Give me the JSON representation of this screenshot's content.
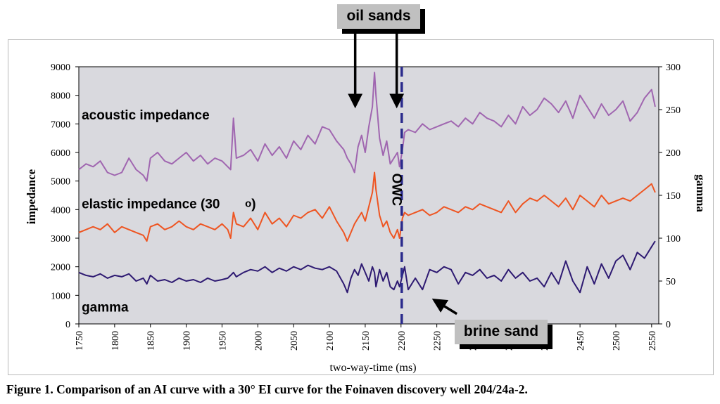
{
  "chart_data": {
    "type": "line",
    "title": "",
    "xlabel": "two-way-time (ms)",
    "ylabel": "impedance",
    "y2label": "gamma",
    "xlim": [
      1750,
      2560
    ],
    "ylim": [
      0,
      9000
    ],
    "y2lim": [
      0,
      300
    ],
    "x_ticks": [
      1750,
      1800,
      1850,
      1900,
      1950,
      2000,
      2050,
      2100,
      2150,
      2200,
      2250,
      2300,
      2350,
      2400,
      2450,
      2500,
      2550
    ],
    "y_ticks": [
      0,
      1000,
      2000,
      3000,
      4000,
      5000,
      6000,
      7000,
      8000,
      9000
    ],
    "y2_ticks": [
      0,
      50,
      100,
      150,
      200,
      250,
      300
    ],
    "grid": false,
    "background": "#d9d9de",
    "series": [
      {
        "name": "acoustic impedance",
        "axis": "left",
        "color": "#a066b0",
        "x": [
          1750,
          1760,
          1770,
          1780,
          1790,
          1800,
          1810,
          1820,
          1830,
          1840,
          1845,
          1850,
          1860,
          1870,
          1880,
          1890,
          1900,
          1910,
          1920,
          1930,
          1940,
          1950,
          1958,
          1962,
          1966,
          1970,
          1980,
          1990,
          2000,
          2010,
          2020,
          2030,
          2040,
          2050,
          2060,
          2070,
          2080,
          2090,
          2100,
          2110,
          2120,
          2125,
          2130,
          2135,
          2140,
          2145,
          2150,
          2155,
          2160,
          2163,
          2165,
          2170,
          2175,
          2180,
          2185,
          2190,
          2195,
          2198,
          2202,
          2205,
          2210,
          2220,
          2230,
          2240,
          2250,
          2260,
          2270,
          2280,
          2290,
          2300,
          2310,
          2320,
          2330,
          2340,
          2350,
          2360,
          2370,
          2380,
          2390,
          2400,
          2410,
          2420,
          2430,
          2440,
          2450,
          2460,
          2470,
          2480,
          2490,
          2500,
          2510,
          2520,
          2530,
          2540,
          2550,
          2555
        ],
        "y": [
          5400,
          5600,
          5500,
          5700,
          5300,
          5200,
          5300,
          5800,
          5400,
          5200,
          5000,
          5800,
          6000,
          5700,
          5600,
          5800,
          6000,
          5700,
          5900,
          5600,
          5800,
          5700,
          5500,
          5400,
          7200,
          5800,
          5900,
          6100,
          5700,
          6300,
          5900,
          6200,
          5800,
          6400,
          6100,
          6600,
          6300,
          6900,
          6800,
          6400,
          6100,
          5800,
          5600,
          5300,
          6200,
          6600,
          6000,
          6900,
          7600,
          8800,
          8000,
          6500,
          5900,
          6400,
          5600,
          5800,
          6000,
          5500,
          6100,
          6700,
          6800,
          6700,
          7000,
          6800,
          6900,
          7000,
          7100,
          6900,
          7200,
          7000,
          7400,
          7200,
          7100,
          6900,
          7300,
          7000,
          7600,
          7300,
          7500,
          7900,
          7700,
          7400,
          7800,
          7200,
          8000,
          7600,
          7200,
          7700,
          7300,
          7500,
          7800,
          7100,
          7400,
          7900,
          8200,
          7600
        ]
      },
      {
        "name": "elastic impedance (30o)",
        "axis": "left",
        "color": "#ee5522",
        "x": [
          1750,
          1760,
          1770,
          1780,
          1790,
          1800,
          1810,
          1820,
          1830,
          1840,
          1845,
          1850,
          1860,
          1870,
          1880,
          1890,
          1900,
          1910,
          1920,
          1930,
          1940,
          1950,
          1958,
          1962,
          1966,
          1970,
          1980,
          1990,
          2000,
          2010,
          2020,
          2030,
          2040,
          2050,
          2060,
          2070,
          2080,
          2090,
          2100,
          2110,
          2120,
          2125,
          2130,
          2135,
          2140,
          2145,
          2150,
          2155,
          2160,
          2163,
          2165,
          2170,
          2175,
          2180,
          2185,
          2190,
          2195,
          2198,
          2202,
          2205,
          2210,
          2220,
          2230,
          2240,
          2250,
          2260,
          2270,
          2280,
          2290,
          2300,
          2310,
          2320,
          2330,
          2340,
          2350,
          2360,
          2370,
          2380,
          2390,
          2400,
          2410,
          2420,
          2430,
          2440,
          2450,
          2460,
          2470,
          2480,
          2490,
          2500,
          2510,
          2520,
          2530,
          2540,
          2550,
          2555
        ],
        "y": [
          3200,
          3300,
          3400,
          3300,
          3500,
          3200,
          3400,
          3300,
          3200,
          3100,
          2900,
          3400,
          3500,
          3300,
          3400,
          3600,
          3400,
          3300,
          3500,
          3400,
          3300,
          3500,
          3300,
          3000,
          3900,
          3500,
          3400,
          3700,
          3300,
          3900,
          3500,
          3700,
          3400,
          3800,
          3700,
          3900,
          4000,
          3700,
          4100,
          3600,
          3200,
          2900,
          3200,
          3500,
          3700,
          3900,
          3600,
          4100,
          4600,
          5300,
          4700,
          3800,
          3400,
          3600,
          3200,
          3000,
          3300,
          3000,
          3700,
          3900,
          3800,
          3900,
          4000,
          3800,
          3900,
          4100,
          4000,
          3900,
          4100,
          4000,
          4200,
          4100,
          4000,
          3900,
          4300,
          3900,
          4200,
          4400,
          4300,
          4500,
          4300,
          4100,
          4400,
          4000,
          4500,
          4300,
          4100,
          4500,
          4200,
          4300,
          4400,
          4300,
          4500,
          4700,
          4900,
          4600
        ]
      },
      {
        "name": "gamma",
        "axis": "left",
        "color": "#2e1a72",
        "x": [
          1750,
          1760,
          1770,
          1780,
          1790,
          1800,
          1810,
          1820,
          1830,
          1840,
          1845,
          1850,
          1860,
          1870,
          1880,
          1890,
          1900,
          1910,
          1920,
          1930,
          1940,
          1950,
          1958,
          1962,
          1966,
          1970,
          1980,
          1990,
          2000,
          2010,
          2020,
          2030,
          2040,
          2050,
          2060,
          2070,
          2080,
          2090,
          2100,
          2110,
          2120,
          2125,
          2130,
          2135,
          2140,
          2145,
          2150,
          2155,
          2160,
          2163,
          2165,
          2170,
          2175,
          2180,
          2185,
          2190,
          2195,
          2198,
          2202,
          2205,
          2210,
          2220,
          2230,
          2240,
          2250,
          2260,
          2270,
          2280,
          2290,
          2300,
          2310,
          2320,
          2330,
          2340,
          2350,
          2360,
          2370,
          2380,
          2390,
          2400,
          2410,
          2420,
          2430,
          2440,
          2450,
          2460,
          2470,
          2480,
          2490,
          2500,
          2510,
          2520,
          2530,
          2540,
          2550,
          2555
        ],
        "y": [
          1800,
          1700,
          1650,
          1750,
          1600,
          1700,
          1650,
          1750,
          1500,
          1600,
          1400,
          1700,
          1500,
          1550,
          1450,
          1600,
          1500,
          1550,
          1450,
          1600,
          1500,
          1550,
          1600,
          1700,
          1800,
          1650,
          1800,
          1900,
          1850,
          2000,
          1800,
          1950,
          1850,
          2000,
          1900,
          2050,
          1950,
          1900,
          2000,
          1850,
          1400,
          1100,
          1600,
          1900,
          1700,
          2100,
          1800,
          1500,
          2000,
          1800,
          1300,
          1900,
          1500,
          1800,
          1300,
          1200,
          1500,
          1300,
          1700,
          2000,
          1200,
          1600,
          1200,
          1900,
          1800,
          2000,
          1900,
          1400,
          1800,
          1700,
          1900,
          1600,
          1700,
          1500,
          1900,
          1600,
          1800,
          1500,
          1600,
          1300,
          1800,
          1400,
          2200,
          1500,
          1100,
          2000,
          1400,
          2100,
          1600,
          2200,
          2400,
          1900,
          2500,
          2300,
          2700,
          2900
        ]
      }
    ],
    "annotations": [
      {
        "text": "acoustic impedance",
        "x": 1754,
        "y": 7150
      },
      {
        "text": "elastic impedance (30",
        "x": 1754,
        "y": 4050
      },
      {
        "text": "gamma",
        "x": 1754,
        "y": 430
      },
      {
        "text": "OWC",
        "x": 2188,
        "y": 4700
      },
      {
        "text": "oil sands",
        "x": 2160,
        "y": 9650
      },
      {
        "text": "brine sand",
        "x": 2265,
        "y": -250
      }
    ],
    "owc_x": 2201,
    "arrows": [
      {
        "name": "oil-sands-arrow-left",
        "from": [
          2136,
          9900
        ],
        "to": [
          2136,
          7800
        ]
      },
      {
        "name": "oil-sands-arrow-right",
        "from": [
          2194,
          9900
        ],
        "to": [
          2194,
          7800
        ]
      },
      {
        "name": "brine-sand-arrow",
        "from": [
          2278,
          350
        ],
        "to": [
          2252,
          750
        ]
      }
    ]
  },
  "labels": {
    "callout_oil": "oil sands",
    "callout_brine": "brine sand",
    "caption": "Figure 1. Comparison of an AI curve with a 30° EI curve for the Foinaven discovery well 204/24a-2."
  },
  "colors": {
    "plot_bg": "#d9d9de",
    "owc_line": "#2b2b8c"
  }
}
